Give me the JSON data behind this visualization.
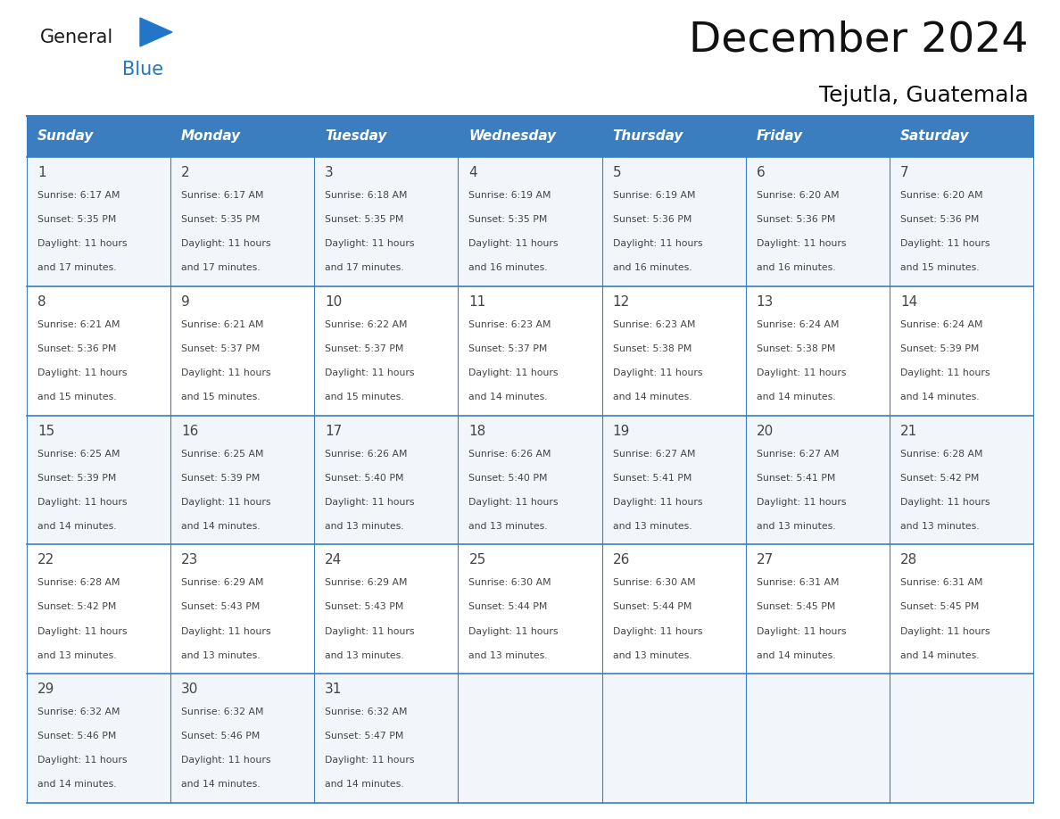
{
  "title": "December 2024",
  "subtitle": "Tejutla, Guatemala",
  "header_bg_color": "#3a7ebf",
  "header_text_color": "#ffffff",
  "header_font_size": 11,
  "day_names": [
    "Sunday",
    "Monday",
    "Tuesday",
    "Wednesday",
    "Thursday",
    "Friday",
    "Saturday"
  ],
  "title_font_size": 34,
  "subtitle_font_size": 18,
  "cell_text_color": "#444444",
  "day_num_color": "#444444",
  "row_colors": [
    "#f2f6fb",
    "#ffffff",
    "#f2f6fb",
    "#ffffff",
    "#f2f6fb"
  ],
  "grid_color": "#3a7ebf",
  "logo_general_color": "#1a1a1a",
  "logo_blue_color": "#2176c7",
  "weeks": [
    [
      {
        "day": 1,
        "sunrise": "6:17 AM",
        "sunset": "5:35 PM",
        "daylight": "11 hours and 17 minutes."
      },
      {
        "day": 2,
        "sunrise": "6:17 AM",
        "sunset": "5:35 PM",
        "daylight": "11 hours and 17 minutes."
      },
      {
        "day": 3,
        "sunrise": "6:18 AM",
        "sunset": "5:35 PM",
        "daylight": "11 hours and 17 minutes."
      },
      {
        "day": 4,
        "sunrise": "6:19 AM",
        "sunset": "5:35 PM",
        "daylight": "11 hours and 16 minutes."
      },
      {
        "day": 5,
        "sunrise": "6:19 AM",
        "sunset": "5:36 PM",
        "daylight": "11 hours and 16 minutes."
      },
      {
        "day": 6,
        "sunrise": "6:20 AM",
        "sunset": "5:36 PM",
        "daylight": "11 hours and 16 minutes."
      },
      {
        "day": 7,
        "sunrise": "6:20 AM",
        "sunset": "5:36 PM",
        "daylight": "11 hours and 15 minutes."
      }
    ],
    [
      {
        "day": 8,
        "sunrise": "6:21 AM",
        "sunset": "5:36 PM",
        "daylight": "11 hours and 15 minutes."
      },
      {
        "day": 9,
        "sunrise": "6:21 AM",
        "sunset": "5:37 PM",
        "daylight": "11 hours and 15 minutes."
      },
      {
        "day": 10,
        "sunrise": "6:22 AM",
        "sunset": "5:37 PM",
        "daylight": "11 hours and 15 minutes."
      },
      {
        "day": 11,
        "sunrise": "6:23 AM",
        "sunset": "5:37 PM",
        "daylight": "11 hours and 14 minutes."
      },
      {
        "day": 12,
        "sunrise": "6:23 AM",
        "sunset": "5:38 PM",
        "daylight": "11 hours and 14 minutes."
      },
      {
        "day": 13,
        "sunrise": "6:24 AM",
        "sunset": "5:38 PM",
        "daylight": "11 hours and 14 minutes."
      },
      {
        "day": 14,
        "sunrise": "6:24 AM",
        "sunset": "5:39 PM",
        "daylight": "11 hours and 14 minutes."
      }
    ],
    [
      {
        "day": 15,
        "sunrise": "6:25 AM",
        "sunset": "5:39 PM",
        "daylight": "11 hours and 14 minutes."
      },
      {
        "day": 16,
        "sunrise": "6:25 AM",
        "sunset": "5:39 PM",
        "daylight": "11 hours and 14 minutes."
      },
      {
        "day": 17,
        "sunrise": "6:26 AM",
        "sunset": "5:40 PM",
        "daylight": "11 hours and 13 minutes."
      },
      {
        "day": 18,
        "sunrise": "6:26 AM",
        "sunset": "5:40 PM",
        "daylight": "11 hours and 13 minutes."
      },
      {
        "day": 19,
        "sunrise": "6:27 AM",
        "sunset": "5:41 PM",
        "daylight": "11 hours and 13 minutes."
      },
      {
        "day": 20,
        "sunrise": "6:27 AM",
        "sunset": "5:41 PM",
        "daylight": "11 hours and 13 minutes."
      },
      {
        "day": 21,
        "sunrise": "6:28 AM",
        "sunset": "5:42 PM",
        "daylight": "11 hours and 13 minutes."
      }
    ],
    [
      {
        "day": 22,
        "sunrise": "6:28 AM",
        "sunset": "5:42 PM",
        "daylight": "11 hours and 13 minutes."
      },
      {
        "day": 23,
        "sunrise": "6:29 AM",
        "sunset": "5:43 PM",
        "daylight": "11 hours and 13 minutes."
      },
      {
        "day": 24,
        "sunrise": "6:29 AM",
        "sunset": "5:43 PM",
        "daylight": "11 hours and 13 minutes."
      },
      {
        "day": 25,
        "sunrise": "6:30 AM",
        "sunset": "5:44 PM",
        "daylight": "11 hours and 13 minutes."
      },
      {
        "day": 26,
        "sunrise": "6:30 AM",
        "sunset": "5:44 PM",
        "daylight": "11 hours and 13 minutes."
      },
      {
        "day": 27,
        "sunrise": "6:31 AM",
        "sunset": "5:45 PM",
        "daylight": "11 hours and 14 minutes."
      },
      {
        "day": 28,
        "sunrise": "6:31 AM",
        "sunset": "5:45 PM",
        "daylight": "11 hours and 14 minutes."
      }
    ],
    [
      {
        "day": 29,
        "sunrise": "6:32 AM",
        "sunset": "5:46 PM",
        "daylight": "11 hours and 14 minutes."
      },
      {
        "day": 30,
        "sunrise": "6:32 AM",
        "sunset": "5:46 PM",
        "daylight": "11 hours and 14 minutes."
      },
      {
        "day": 31,
        "sunrise": "6:32 AM",
        "sunset": "5:47 PM",
        "daylight": "11 hours and 14 minutes."
      },
      null,
      null,
      null,
      null
    ]
  ]
}
